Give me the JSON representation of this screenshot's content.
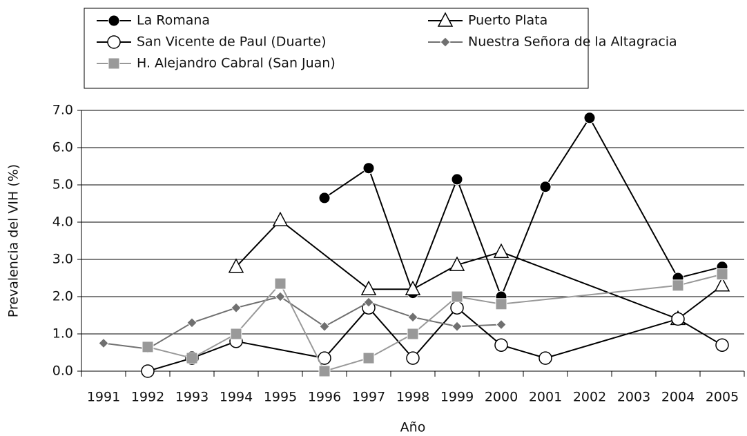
{
  "chart_data": {
    "type": "line",
    "x_label": "Año",
    "y_label": "Prevalencia del VIH (%)",
    "categories": [
      "1991",
      "1992",
      "1993",
      "1994",
      "1995",
      "1996",
      "1997",
      "1998",
      "1999",
      "2000",
      "2001",
      "2002",
      "2003",
      "2004",
      "2005"
    ],
    "ylim": [
      0,
      7
    ],
    "yticks": [
      {
        "value": 0,
        "label": "0.0"
      },
      {
        "value": 1,
        "label": "1.0"
      },
      {
        "value": 2,
        "label": "2.0"
      },
      {
        "value": 3,
        "label": "3.0"
      },
      {
        "value": 4,
        "label": "4.0"
      },
      {
        "value": 5,
        "label": "5.0"
      },
      {
        "value": 6,
        "label": "6.0"
      },
      {
        "value": 7,
        "label": "7.0"
      }
    ],
    "grid": true,
    "connect_gaps": true,
    "series": [
      {
        "name": "La Romana",
        "color": "#000000",
        "marker": "circle-filled",
        "values": [
          null,
          null,
          null,
          null,
          null,
          4.65,
          5.45,
          2.1,
          5.15,
          2.0,
          4.95,
          6.8,
          null,
          2.5,
          2.8
        ]
      },
      {
        "name": "Puerto Plata",
        "color": "#000000",
        "marker": "triangle-open",
        "values": [
          null,
          null,
          null,
          2.8,
          4.05,
          null,
          2.2,
          2.2,
          2.85,
          3.2,
          null,
          null,
          null,
          1.4,
          2.3
        ]
      },
      {
        "name": "San Vicente de Paul (Duarte)",
        "color": "#000000",
        "marker": "circle-open",
        "values": [
          null,
          0.0,
          0.35,
          0.8,
          null,
          0.35,
          1.7,
          0.35,
          1.7,
          0.7,
          0.35,
          null,
          null,
          1.4,
          0.7
        ]
      },
      {
        "name": "Nuestra Señora de la Altagracia",
        "color": "#707070",
        "marker": "diamond",
        "values": [
          0.75,
          0.6,
          1.3,
          1.7,
          2.0,
          1.2,
          1.85,
          1.45,
          1.2,
          1.25,
          null,
          null,
          null,
          null,
          null
        ]
      },
      {
        "name": "H. Alejandro Cabral (San Juan)",
        "color": "#999999",
        "marker": "square",
        "values": [
          null,
          0.65,
          0.35,
          1.0,
          2.35,
          0.0,
          0.35,
          1.0,
          2.0,
          1.8,
          null,
          null,
          null,
          2.3,
          2.6
        ]
      }
    ]
  }
}
